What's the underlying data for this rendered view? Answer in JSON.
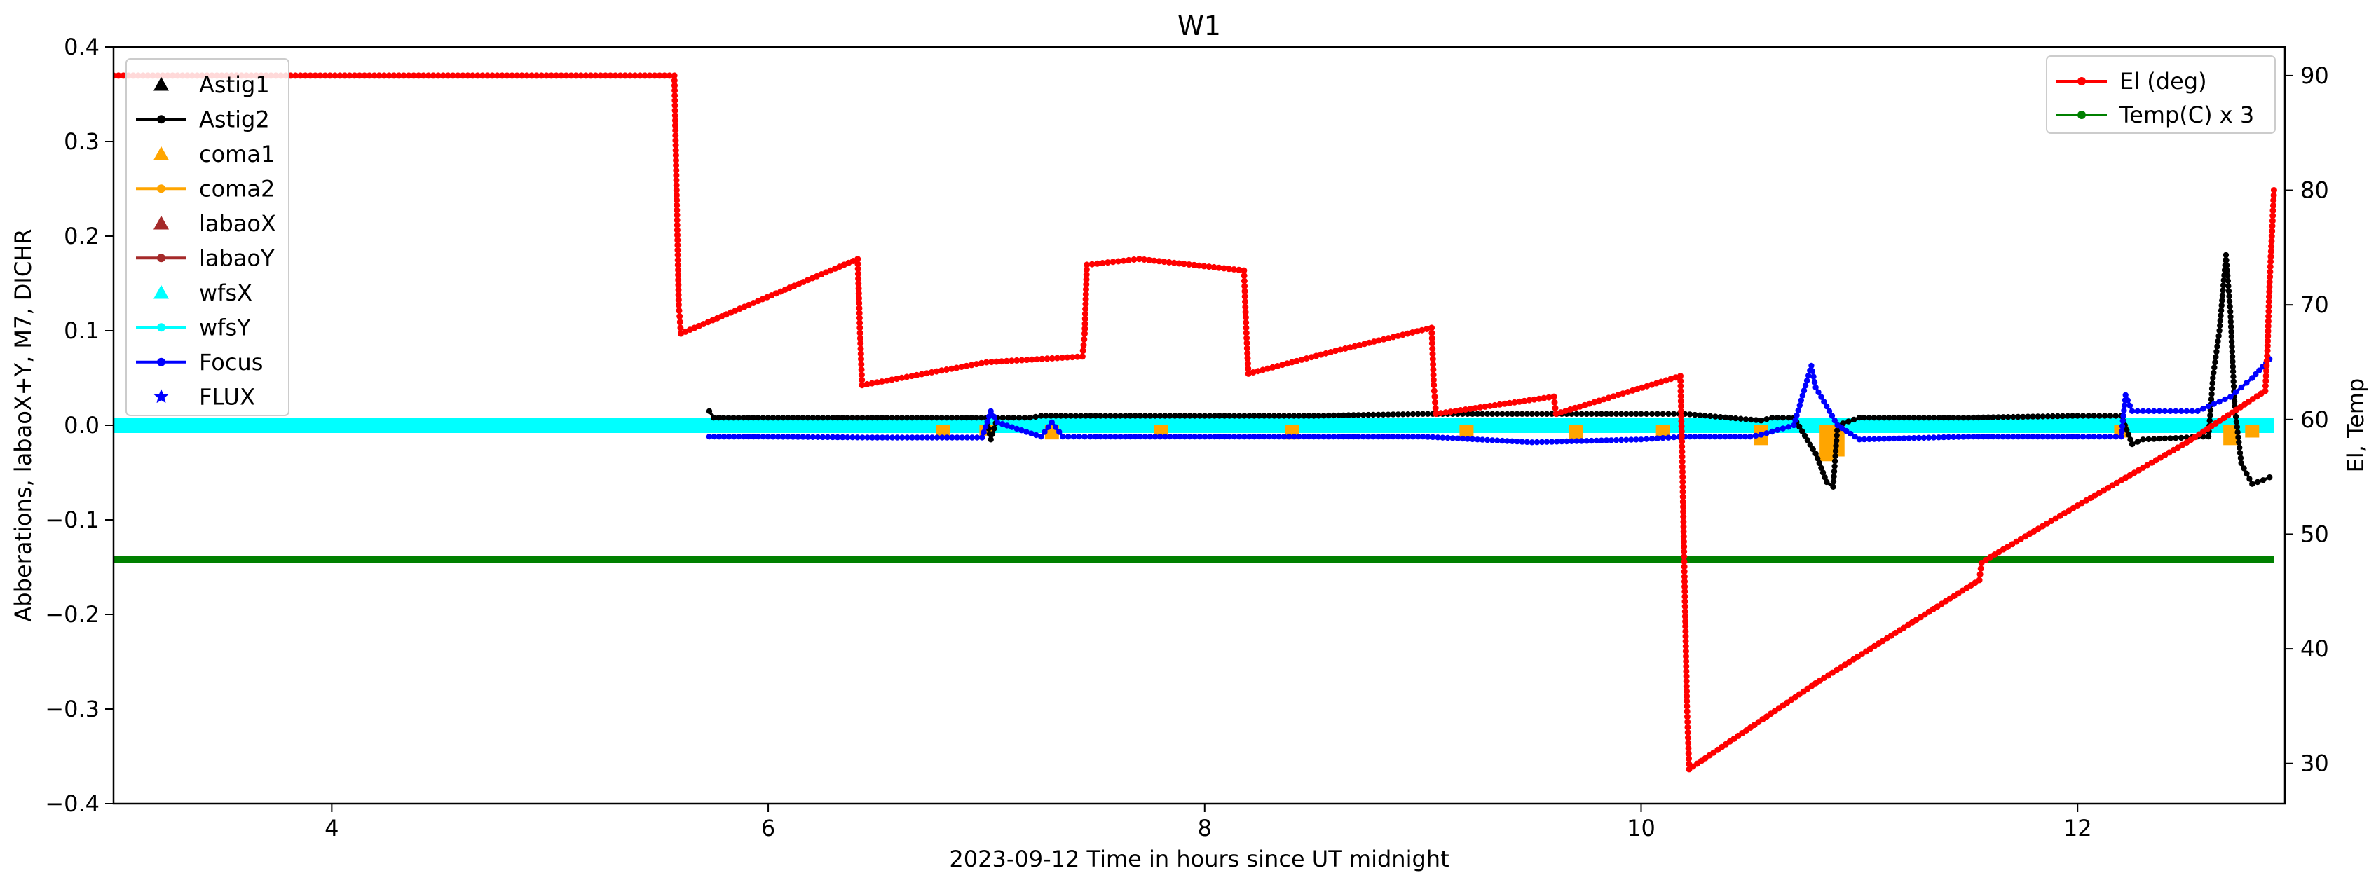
{
  "chart_data": {
    "type": "line",
    "title": "W1",
    "xlabel": "2023-09-12  Time in hours since UT midnight",
    "ylabel": "Abberations, labaoX+Y, M7, DICHR",
    "y2label": "El, Temp",
    "xlim": [
      3.0,
      12.95
    ],
    "ylim": [
      -0.4,
      0.4
    ],
    "y2lim": [
      26.5,
      92.5
    ],
    "x_ticks": [
      4,
      6,
      8,
      10,
      12
    ],
    "y_ticks": [
      -0.4,
      -0.3,
      -0.2,
      -0.1,
      0.0,
      0.1,
      0.2,
      0.3,
      0.4
    ],
    "y2_ticks": [
      30,
      40,
      50,
      60,
      70,
      80,
      90
    ],
    "x_tick_labels": [
      "4",
      "6",
      "8",
      "10",
      "12"
    ],
    "y_tick_labels": [
      "−0.4",
      "−0.3",
      "−0.2",
      "−0.1",
      "0.0",
      "0.1",
      "0.2",
      "0.3",
      "0.4"
    ],
    "y2_tick_labels": [
      "30",
      "40",
      "50",
      "60",
      "70",
      "80",
      "90"
    ],
    "grid": false,
    "legend_left": {
      "placement": "upper-left",
      "entries": [
        {
          "name": "Astig1",
          "color": "#000000",
          "marker": "triangle",
          "line": false
        },
        {
          "name": "Astig2",
          "color": "#000000",
          "marker": "dot",
          "line": true
        },
        {
          "name": "coma1",
          "color": "#ffa500",
          "marker": "triangle",
          "line": false
        },
        {
          "name": "coma2",
          "color": "#ffa500",
          "marker": "dot",
          "line": true
        },
        {
          "name": "labaoX",
          "color": "#a52a2a",
          "marker": "triangle",
          "line": false
        },
        {
          "name": "labaoY",
          "color": "#a52a2a",
          "marker": "dot",
          "line": true
        },
        {
          "name": "wfsX",
          "color": "#00ffff",
          "marker": "triangle",
          "line": false
        },
        {
          "name": "wfsY",
          "color": "#00ffff",
          "marker": "dot",
          "line": true
        },
        {
          "name": "Focus",
          "color": "#0000ff",
          "marker": "dot",
          "line": true
        },
        {
          "name": "FLUX",
          "color": "#0000ff",
          "marker": "star",
          "line": false
        }
      ]
    },
    "legend_right": {
      "placement": "upper-right",
      "entries": [
        {
          "name": "El (deg)",
          "color": "#ff0000",
          "marker": "dot",
          "line": true
        },
        {
          "name": "Temp(C) x 3",
          "color": "#008000",
          "marker": "dot",
          "line": true
        }
      ]
    },
    "series": [
      {
        "name": "El (deg)",
        "axis": "right",
        "color": "#ff0000",
        "x": [
          3.0,
          5.57,
          5.58,
          5.59,
          5.6,
          6.41,
          6.42,
          6.43,
          7.0,
          7.44,
          7.45,
          7.46,
          7.7,
          8.18,
          8.19,
          8.2,
          8.6,
          9.04,
          9.05,
          9.06,
          9.6,
          9.61,
          10.18,
          10.19,
          10.2,
          10.21,
          10.22,
          10.8,
          11.55,
          11.56,
          11.6,
          12.0,
          12.5,
          12.86,
          12.87,
          12.88,
          12.89,
          12.9
        ],
        "y": [
          90.0,
          90.0,
          80.0,
          70.0,
          67.5,
          74.0,
          68.0,
          63.0,
          65.0,
          65.5,
          67.5,
          73.5,
          74.0,
          73.0,
          68.0,
          64.0,
          66.0,
          68.0,
          63.0,
          60.5,
          62.0,
          60.5,
          63.8,
          55.0,
          45.0,
          35.0,
          29.5,
          37.0,
          46.0,
          47.5,
          48.0,
          52.5,
          58.0,
          62.5,
          66.0,
          72.0,
          76.0,
          80.0
        ]
      },
      {
        "name": "Temp(C) x 3",
        "axis": "right",
        "color": "#008000",
        "x": [
          3.0,
          12.9
        ],
        "y": [
          47.8,
          47.8
        ]
      },
      {
        "name": "wfsY",
        "axis": "left",
        "color": "#00ffff",
        "x": [
          3.0,
          12.9
        ],
        "y": [
          0.0,
          0.0
        ]
      },
      {
        "name": "Astig2",
        "axis": "left",
        "color": "#000000",
        "x": [
          5.73,
          5.75,
          6.0,
          6.5,
          7.0,
          7.02,
          7.05,
          7.2,
          7.25,
          7.5,
          8.0,
          8.5,
          9.0,
          9.5,
          10.0,
          10.2,
          10.55,
          10.6,
          10.7,
          10.8,
          10.85,
          10.88,
          10.9,
          11.0,
          11.5,
          12.0,
          12.2,
          12.25,
          12.3,
          12.5,
          12.55,
          12.6,
          12.62,
          12.65,
          12.68,
          12.7,
          12.72,
          12.75,
          12.8,
          12.85,
          12.88
        ],
        "y": [
          0.015,
          0.008,
          0.008,
          0.008,
          0.008,
          -0.015,
          0.008,
          0.008,
          0.01,
          0.01,
          0.01,
          0.01,
          0.012,
          0.012,
          0.012,
          0.012,
          0.005,
          0.008,
          0.008,
          -0.03,
          -0.06,
          -0.065,
          0.0,
          0.008,
          0.008,
          0.01,
          0.01,
          -0.02,
          -0.015,
          -0.013,
          -0.012,
          -0.012,
          0.05,
          0.1,
          0.18,
          0.12,
          0.02,
          -0.04,
          -0.062,
          -0.058,
          -0.055
        ]
      },
      {
        "name": "Focus",
        "axis": "left",
        "color": "#0000ff",
        "x": [
          5.73,
          6.0,
          6.5,
          6.98,
          7.02,
          7.05,
          7.25,
          7.3,
          7.35,
          7.5,
          8.0,
          8.5,
          9.0,
          9.5,
          10.0,
          10.2,
          10.5,
          10.55,
          10.7,
          10.78,
          10.8,
          10.85,
          10.9,
          11.0,
          11.5,
          12.0,
          12.2,
          12.22,
          12.25,
          12.3,
          12.5,
          12.55,
          12.6,
          12.65,
          12.7,
          12.75,
          12.8,
          12.88
        ],
        "y": [
          -0.012,
          -0.012,
          -0.013,
          -0.013,
          0.015,
          0.003,
          -0.012,
          0.003,
          -0.012,
          -0.012,
          -0.012,
          -0.012,
          -0.012,
          -0.018,
          -0.015,
          -0.012,
          -0.012,
          -0.01,
          0.0,
          0.063,
          0.04,
          0.02,
          0.0,
          -0.015,
          -0.012,
          -0.012,
          -0.012,
          0.032,
          0.015,
          0.015,
          0.015,
          0.015,
          0.02,
          0.025,
          0.03,
          0.04,
          0.05,
          0.07
        ]
      },
      {
        "name": "coma1",
        "axis": "left",
        "color": "#ffa500",
        "x": [
          6.8,
          7.0,
          7.3,
          7.8,
          8.4,
          9.2,
          9.7,
          10.1,
          10.55,
          10.85,
          10.9,
          12.2,
          12.7,
          12.8
        ],
        "y": [
          -0.01,
          -0.008,
          -0.012,
          -0.01,
          -0.012,
          -0.012,
          -0.012,
          -0.012,
          -0.018,
          -0.035,
          -0.03,
          -0.01,
          -0.018,
          -0.01
        ]
      }
    ]
  }
}
